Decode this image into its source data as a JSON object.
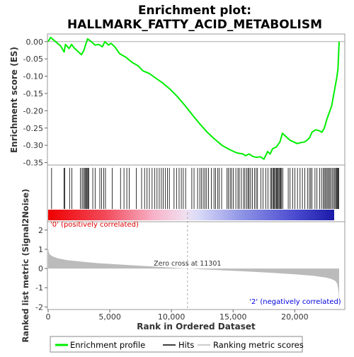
{
  "title_line1": "Enrichment plot:",
  "title_line2": "HALLMARK_FATTY_ACID_METABOLISM",
  "colors": {
    "enrichment": "#00ee00",
    "hits": "#000000",
    "metric_fill": "#bbbbbb",
    "positive_label": "#dd0000",
    "negative_label": "#0000dd"
  },
  "chart_data": {
    "type": "line",
    "xlabel": "Rank in Ordered Dataset",
    "x_ticks": [
      0,
      5000,
      10000,
      15000,
      20000
    ],
    "x_tick_labels": [
      "0",
      "5,000",
      "10,000",
      "15,000",
      "20,000"
    ],
    "xlim": [
      0,
      24000
    ],
    "n_genes": 23600,
    "es_panel": {
      "ylabel": "Enrichment score (ES)",
      "ylim": [
        -0.355,
        0.02
      ],
      "y_ticks": [
        0.0,
        -0.05,
        -0.1,
        -0.15,
        -0.2,
        -0.25,
        -0.3,
        -0.35
      ],
      "y_tick_labels": [
        "0.00",
        "-0.05",
        "-0.10",
        "-0.15",
        "-0.20",
        "-0.25",
        "-0.30",
        "-0.35"
      ],
      "profile": {
        "name": "Enrichment profile",
        "x": [
          0,
          200,
          600,
          1000,
          1300,
          1400,
          1700,
          1900,
          2100,
          2400,
          2700,
          2900,
          3050,
          3200,
          3500,
          3800,
          4100,
          4400,
          4600,
          4900,
          5100,
          5400,
          5800,
          6300,
          6800,
          7300,
          7700,
          8200,
          8700,
          9300,
          9900,
          10500,
          11100,
          11700,
          12300,
          12900,
          13500,
          14100,
          14700,
          15300,
          15800,
          16000,
          16300,
          16600,
          16900,
          17200,
          17500,
          17800,
          18000,
          18200,
          18500,
          18800,
          19000,
          19300,
          19600,
          19900,
          20200,
          20500,
          20800,
          21000,
          21200,
          21400,
          21700,
          22000,
          22200,
          22400,
          22600,
          22800,
          23000,
          23100,
          23200,
          23300,
          23400,
          23500,
          23550,
          23600
        ],
        "y": [
          0.0,
          0.012,
          0.0,
          -0.012,
          -0.03,
          -0.008,
          -0.02,
          -0.008,
          -0.018,
          -0.028,
          -0.038,
          -0.025,
          -0.008,
          0.008,
          0.0,
          -0.01,
          -0.008,
          -0.015,
          0.0,
          -0.01,
          -0.005,
          -0.015,
          -0.035,
          -0.045,
          -0.06,
          -0.07,
          -0.085,
          -0.092,
          -0.105,
          -0.12,
          -0.138,
          -0.16,
          -0.185,
          -0.212,
          -0.238,
          -0.262,
          -0.282,
          -0.3,
          -0.312,
          -0.322,
          -0.325,
          -0.33,
          -0.325,
          -0.332,
          -0.335,
          -0.333,
          -0.34,
          -0.318,
          -0.325,
          -0.31,
          -0.305,
          -0.29,
          -0.265,
          -0.275,
          -0.285,
          -0.29,
          -0.295,
          -0.292,
          -0.29,
          -0.285,
          -0.278,
          -0.262,
          -0.255,
          -0.258,
          -0.262,
          -0.25,
          -0.225,
          -0.205,
          -0.185,
          -0.165,
          -0.145,
          -0.125,
          -0.105,
          -0.08,
          -0.04,
          0.0
        ]
      }
    },
    "hits": {
      "name": "Hits",
      "x": [
        280,
        1280,
        1350,
        1740,
        1920,
        2620,
        2750,
        2850,
        2950,
        3030,
        3100,
        3160,
        3230,
        3290,
        3620,
        3810,
        4190,
        4330,
        4510,
        4650,
        5200,
        5870,
        6150,
        6380,
        6580,
        7150,
        7580,
        7820,
        8020,
        8210,
        8430,
        8650,
        8830,
        9010,
        9180,
        9330,
        9510,
        9680,
        9830,
        10210,
        10410,
        10620,
        10800,
        10960,
        11150,
        11650,
        11830,
        12120,
        12300,
        12440,
        12580,
        12720,
        12850,
        13000,
        13230,
        13450,
        13580,
        13760,
        13880,
        14070,
        14510,
        14620,
        14760,
        14870,
        15020,
        15220,
        15390,
        15500,
        15670,
        15850,
        15960,
        16100,
        16210,
        16300,
        16420,
        16560,
        16730,
        16870,
        16980,
        17250,
        17420,
        17660,
        17830,
        18030,
        18120,
        18210,
        18280,
        18360,
        18430,
        18510,
        18580,
        18650,
        18720,
        18790,
        18860,
        18930,
        19030,
        19470,
        19620,
        19830,
        20010,
        20220,
        20430,
        20620,
        20810,
        21030,
        21180,
        21290,
        21400,
        21640,
        21800,
        22010,
        22170,
        22300,
        22400,
        22490,
        22580,
        22670,
        22760,
        22850,
        22950,
        23060,
        23160,
        23250,
        23330,
        23410,
        23470,
        23510,
        23560
      ]
    },
    "metric_panel": {
      "ylabel": "Ranked list metric (Signal2Noise)",
      "ylim": [
        -2.1,
        2.4
      ],
      "y_ticks": [
        2,
        1,
        0,
        -1,
        -2
      ],
      "y_tick_labels": [
        "2",
        "1",
        "0",
        "-1",
        "-2"
      ],
      "series": {
        "name": "Ranking metric scores",
        "x": [
          0,
          50,
          150,
          400,
          800,
          1500,
          2500,
          4000,
          6000,
          8000,
          10000,
          11301,
          12500,
          14000,
          16000,
          18000,
          20000,
          21500,
          22500,
          23000,
          23300,
          23450,
          23550,
          23600
        ],
        "y": [
          1.05,
          0.85,
          0.72,
          0.62,
          0.53,
          0.44,
          0.37,
          0.28,
          0.2,
          0.12,
          0.05,
          0.0,
          -0.04,
          -0.09,
          -0.15,
          -0.22,
          -0.3,
          -0.38,
          -0.47,
          -0.55,
          -0.65,
          -0.8,
          -1.2,
          -1.8
        ]
      },
      "zero_cross_x": 11301,
      "zero_cross_label": "Zero cross at 11301",
      "positive_label": "'0' (positively correlated)",
      "negative_label": "'2' (negatively correlated)"
    },
    "legend": {
      "placement": "bottom",
      "entries": [
        "Enrichment profile",
        "Hits",
        "Ranking metric scores"
      ]
    }
  }
}
